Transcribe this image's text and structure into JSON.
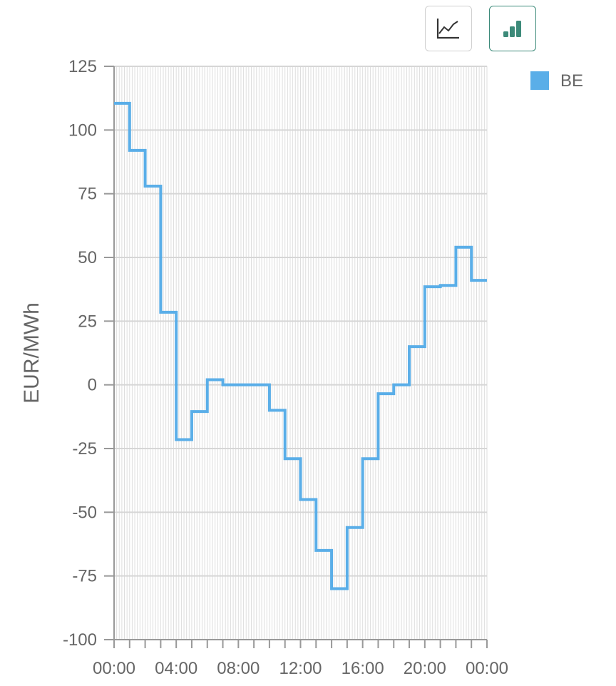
{
  "toolbar": {
    "line_icon": "line-chart-icon",
    "bar_icon": "bar-chart-icon",
    "active": "bar"
  },
  "chart_data": {
    "type": "line",
    "step": true,
    "ylabel": "EUR/MWh",
    "xlabel": "",
    "ylim": [
      -100,
      125
    ],
    "yticks": [
      125,
      100,
      75,
      50,
      25,
      0,
      -25,
      -50,
      -75,
      -100
    ],
    "xticks": [
      "00:00",
      "04:00",
      "08:00",
      "12:00",
      "16:00",
      "20:00",
      "00:00"
    ],
    "grid": true,
    "legend_position": "top-right",
    "series": [
      {
        "name": "BE",
        "color": "#5aaee8",
        "x": [
          "00:00",
          "01:00",
          "02:00",
          "03:00",
          "04:00",
          "05:00",
          "06:00",
          "07:00",
          "08:00",
          "09:00",
          "10:00",
          "11:00",
          "12:00",
          "13:00",
          "14:00",
          "15:00",
          "16:00",
          "17:00",
          "18:00",
          "19:00",
          "20:00",
          "21:00",
          "22:00",
          "23:00"
        ],
        "values": [
          110.5,
          92,
          78,
          28.5,
          -21.5,
          -10.5,
          2,
          0,
          0,
          0,
          -10,
          -29,
          -45,
          -65,
          -80,
          -56,
          -29,
          -3.5,
          0,
          15,
          38.5,
          39,
          54,
          41
        ]
      }
    ]
  }
}
